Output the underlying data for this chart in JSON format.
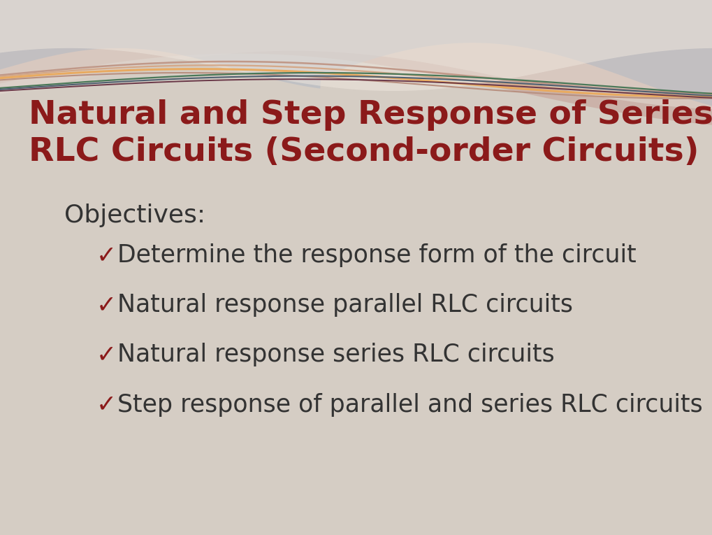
{
  "bg_color": "#d5cdc4",
  "title_line1": "Natural and Step Response of Series & Parallel",
  "title_line2": "RLC Circuits (Second-order Circuits)",
  "title_color": "#8B1A1A",
  "title_fontsize": 34,
  "objectives_label": "Objectives:",
  "objectives_fontsize": 26,
  "objectives_color": "#333333",
  "bullet_items": [
    "Determine the response form of the circuit",
    "Natural response parallel RLC circuits",
    "Natural response series RLC circuits",
    "Step response of parallel and series RLC circuits"
  ],
  "bullet_fontsize": 25,
  "bullet_color": "#333333",
  "checkmark": "✓"
}
